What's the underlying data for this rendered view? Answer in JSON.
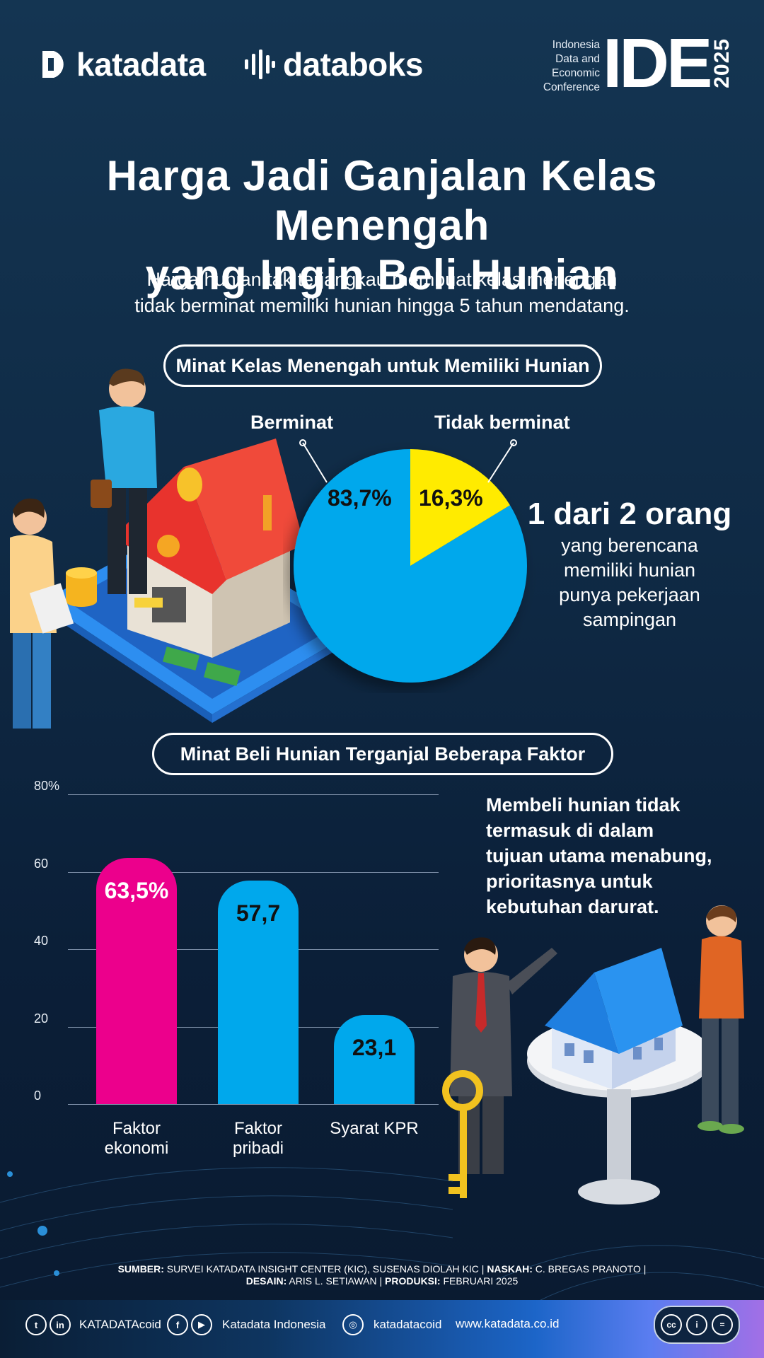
{
  "header": {
    "brand1": "katadata",
    "brand2": "databoks",
    "ide_small": [
      "Indonesia",
      "Data and",
      "Economic",
      "Conference"
    ],
    "ide_big": "IDE",
    "ide_year": "2025"
  },
  "title_line1": "Harga Jadi Ganjalan Kelas Menengah",
  "title_line2": "yang Ingin Beli Hunian",
  "subtitle_line1": "Harga hunian tak terjangkau membuat kelas menengah",
  "subtitle_line2": "tidak berminat memiliki hunian hingga 5 tahun mendatang.",
  "section1_title": "Minat Kelas Menengah untuk Memiliki Hunian",
  "section2_title": "Minat Beli Hunian Terganjal Beberapa Faktor",
  "stat": {
    "big": "1 dari 2 orang",
    "lines": [
      "yang berencana",
      "memiliki hunian",
      "punya pekerjaan",
      "sampingan"
    ]
  },
  "note_lines": [
    "Membeli hunian tidak",
    "termasuk di dalam",
    "tujuan utama menabung,",
    "prioritasnya untuk",
    "kebutuhan darurat."
  ],
  "source_line1": {
    "k1": "SUMBER:",
    "v1": " SURVEI KATADATA INSIGHT CENTER (KIC), SUSENAS DIOLAH KIC | ",
    "k2": "NASKAH:",
    "v2": " C. BREGAS PRANOTO |"
  },
  "source_line2": {
    "k1": "DESAIN:",
    "v1": " ARIS L. SETIAWAN | ",
    "k2": "PRODUKSI:",
    "v2": " FEBRUARI 2025"
  },
  "footer": {
    "social1": "KATADATAcoid",
    "social2": "Katadata Indonesia",
    "social3": "katadatacoid",
    "website": "www.katadata.co.id"
  },
  "colors": {
    "pie_main": "#00a8ec",
    "pie_accent": "#ffeb00",
    "bar_pink": "#ec008c",
    "bar_blue": "#00a8ec"
  },
  "chart_data": [
    {
      "type": "pie",
      "title": "Minat Kelas Menengah untuk Memiliki Hunian",
      "slices": [
        {
          "name": "Berminat",
          "value": 83.7,
          "label": "83,7%"
        },
        {
          "name": "Tidak berminat",
          "value": 16.3,
          "label": "16,3%"
        }
      ]
    },
    {
      "type": "bar",
      "title": "Minat Beli Hunian Terganjal Beberapa Faktor",
      "categories": [
        [
          "Faktor",
          "ekonomi"
        ],
        [
          "Faktor",
          "pribadi"
        ],
        [
          "Syarat KPR"
        ]
      ],
      "values": [
        63.5,
        57.7,
        23.1
      ],
      "labels": [
        "63,5%",
        "57,7",
        "23,1"
      ],
      "ylim": [
        0,
        80
      ],
      "yticks": [
        0,
        20,
        40,
        60,
        80
      ],
      "ytick_labels": [
        "0",
        "20",
        "40",
        "60",
        "80%"
      ],
      "grid": true
    }
  ]
}
